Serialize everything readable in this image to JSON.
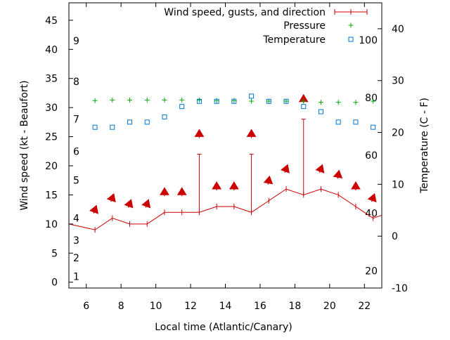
{
  "chart_data": {
    "type": "line",
    "title": "",
    "xlabel": "Local time (Atlantic/Canary)",
    "ylabel": "Wind speed (kt - Beaufort)",
    "y2label": "Temperature (C - F)",
    "xlim": [
      5,
      23
    ],
    "ylim": [
      -1,
      48
    ],
    "y2lim": [
      -10,
      45
    ],
    "x_ticks": [
      6,
      8,
      10,
      12,
      14,
      16,
      18,
      20,
      22
    ],
    "y_ticks": [
      0,
      5,
      10,
      15,
      20,
      25,
      30,
      35,
      40,
      45
    ],
    "y2_ticks": [
      -10,
      0,
      10,
      20,
      30,
      40
    ],
    "beaufort_labels": [
      {
        "text": "1",
        "y": 1.0
      },
      {
        "text": "2",
        "y": 4.2
      },
      {
        "text": "3",
        "y": 7.2
      },
      {
        "text": "4",
        "y": 11.0
      },
      {
        "text": "5",
        "y": 17.5
      },
      {
        "text": "6",
        "y": 22.5
      },
      {
        "text": "7",
        "y": 28.0
      },
      {
        "text": "8",
        "y": 34.5
      },
      {
        "text": "9",
        "y": 41.5
      }
    ],
    "fahrenheit_labels": [
      {
        "text": "20",
        "c": -6.7
      },
      {
        "text": "40",
        "c": 4.4
      },
      {
        "text": "60",
        "c": 15.6
      },
      {
        "text": "80",
        "c": 26.7
      },
      {
        "text": "100",
        "c": 37.8
      }
    ],
    "legend": {
      "position": "top-right",
      "entries": [
        "Wind speed, gusts, and direction",
        "Pressure",
        "Temperature"
      ]
    },
    "colors": {
      "wind": "#cc0000",
      "pressure": "#00aa00",
      "temperature": "#0077cc"
    },
    "series": [
      {
        "name": "Wind speed, gusts, and direction",
        "x": [
          5,
          6.5,
          7.5,
          8.5,
          9.5,
          10.5,
          11.5,
          12.5,
          13.5,
          14.5,
          15.5,
          16.5,
          17.5,
          18.5,
          19.5,
          20.5,
          21.5,
          22.5,
          23
        ],
        "values": [
          10,
          9,
          11,
          10,
          10,
          12,
          12,
          12,
          13,
          13,
          12,
          14,
          16,
          15,
          16,
          15,
          13,
          11,
          11.5
        ]
      },
      {
        "name": "Gusts",
        "x": [
          12.5,
          15.5,
          18.5
        ],
        "values": [
          22,
          22,
          28
        ]
      },
      {
        "name": "Direction arrows",
        "x": [
          6.5,
          7.5,
          8.5,
          9.5,
          10.5,
          11.5,
          12.5,
          13.5,
          14.5,
          15.5,
          16.5,
          17.5,
          18.5,
          19.5,
          20.5,
          21.5,
          22.5
        ],
        "values": [
          12.5,
          14.5,
          13.5,
          13.5,
          15.5,
          15.5,
          25.5,
          16.5,
          16.5,
          25.5,
          17.5,
          19.5,
          31.5,
          19.5,
          18.5,
          16.5,
          14.5
        ],
        "angles_deg": [
          200,
          200,
          200,
          200,
          180,
          180,
          180,
          180,
          180,
          180,
          190,
          200,
          180,
          200,
          190,
          180,
          200
        ]
      },
      {
        "name": "Pressure",
        "x": [
          6.5,
          7.5,
          8.5,
          9.5,
          10.5,
          11.5,
          12.5,
          13.5,
          14.5,
          15.5,
          16.5,
          17.5,
          18.5,
          19.5,
          20.5,
          21.5,
          22.5
        ],
        "values": [
          31.2,
          31.3,
          31.3,
          31.3,
          31.3,
          31.3,
          31.3,
          31.2,
          31.2,
          31.1,
          31.1,
          31.1,
          31.1,
          30.9,
          30.9,
          30.9,
          31.1
        ]
      },
      {
        "name": "Temperature",
        "x": [
          6.5,
          7.5,
          8.5,
          9.5,
          10.5,
          11.5,
          12.5,
          13.5,
          14.5,
          15.5,
          16.5,
          17.5,
          18.5,
          19.5,
          20.5,
          21.5,
          22.5
        ],
        "values": [
          21,
          21,
          22,
          22,
          23,
          25,
          26,
          26,
          26,
          27,
          26,
          26,
          25,
          24,
          22,
          22,
          21
        ]
      }
    ]
  }
}
